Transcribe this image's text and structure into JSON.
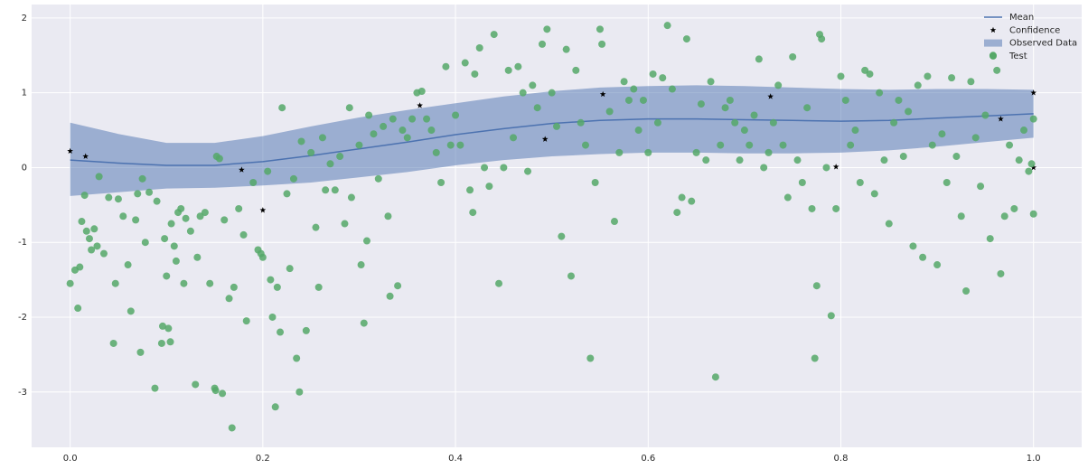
{
  "chart_data": {
    "type": "line",
    "xlim": [
      -0.04,
      1.05
    ],
    "ylim": [
      -3.74,
      2.18
    ],
    "xticks": [
      {
        "value": 0,
        "label": "0.0"
      },
      0.2,
      0.4,
      0.6,
      0.8,
      {
        "value": 1,
        "label": "1.0"
      }
    ],
    "yticks": [
      -3,
      -2,
      -1,
      0,
      1,
      2
    ],
    "grid": true,
    "legend": "upper right",
    "series": [
      {
        "name": "Mean",
        "type": "line",
        "color": "#4c72b0",
        "x": [
          0,
          0.05,
          0.1,
          0.15,
          0.2,
          0.25,
          0.3,
          0.35,
          0.4,
          0.45,
          0.5,
          0.55,
          0.6,
          0.65,
          0.7,
          0.75,
          0.8,
          0.85,
          0.9,
          0.95,
          1.0
        ],
        "values": [
          0.1,
          0.06,
          0.03,
          0.03,
          0.08,
          0.16,
          0.25,
          0.34,
          0.44,
          0.52,
          0.59,
          0.63,
          0.65,
          0.65,
          0.64,
          0.63,
          0.62,
          0.63,
          0.66,
          0.69,
          0.72
        ]
      },
      {
        "name": "Confidence",
        "type": "scatter",
        "marker": "star",
        "color": "#000000",
        "x": [
          0,
          0.016,
          0.178,
          0.2,
          0.363,
          0.493,
          0.553,
          0.727,
          0.795,
          0.966,
          1.0,
          1.0
        ],
        "values": [
          0.22,
          0.15,
          -0.03,
          -0.57,
          0.83,
          0.38,
          0.98,
          0.95,
          0.01,
          0.65,
          1.0,
          0.0
        ]
      },
      {
        "name": "Observed Data",
        "type": "area",
        "color": "#4c72b0",
        "x": [
          0,
          0.05,
          0.1,
          0.15,
          0.2,
          0.25,
          0.3,
          0.35,
          0.4,
          0.45,
          0.5,
          0.55,
          0.6,
          0.65,
          0.7,
          0.75,
          0.8,
          0.85,
          0.9,
          0.95,
          1.0
        ],
        "upper": [
          0.6,
          0.45,
          0.33,
          0.33,
          0.42,
          0.55,
          0.67,
          0.77,
          0.86,
          0.95,
          1.02,
          1.07,
          1.09,
          1.1,
          1.09,
          1.07,
          1.05,
          1.04,
          1.05,
          1.05,
          1.04
        ],
        "lower": [
          -0.38,
          -0.33,
          -0.28,
          -0.27,
          -0.24,
          -0.2,
          -0.13,
          -0.06,
          0.03,
          0.1,
          0.15,
          0.18,
          0.2,
          0.2,
          0.19,
          0.19,
          0.2,
          0.23,
          0.28,
          0.34,
          0.4
        ]
      },
      {
        "name": "Test",
        "type": "scatter",
        "marker": "circle",
        "color": "#55a868",
        "x": [
          0.0,
          0.005,
          0.008,
          0.01,
          0.012,
          0.015,
          0.017,
          0.02,
          0.022,
          0.025,
          0.028,
          0.03,
          0.035,
          0.04,
          0.045,
          0.047,
          0.05,
          0.055,
          0.06,
          0.063,
          0.068,
          0.07,
          0.073,
          0.075,
          0.078,
          0.082,
          0.088,
          0.09,
          0.095,
          0.096,
          0.098,
          0.1,
          0.102,
          0.104,
          0.105,
          0.108,
          0.11,
          0.112,
          0.115,
          0.118,
          0.12,
          0.125,
          0.13,
          0.132,
          0.135,
          0.14,
          0.145,
          0.15,
          0.151,
          0.152,
          0.155,
          0.158,
          0.16,
          0.165,
          0.168,
          0.17,
          0.175,
          0.18,
          0.183,
          0.19,
          0.195,
          0.198,
          0.2,
          0.205,
          0.208,
          0.21,
          0.213,
          0.215,
          0.218,
          0.22,
          0.225,
          0.228,
          0.232,
          0.235,
          0.238,
          0.24,
          0.245,
          0.25,
          0.255,
          0.258,
          0.262,
          0.265,
          0.27,
          0.275,
          0.28,
          0.285,
          0.29,
          0.292,
          0.3,
          0.302,
          0.305,
          0.308,
          0.31,
          0.315,
          0.32,
          0.325,
          0.33,
          0.332,
          0.335,
          0.34,
          0.345,
          0.35,
          0.355,
          0.36,
          0.365,
          0.37,
          0.375,
          0.38,
          0.385,
          0.39,
          0.395,
          0.4,
          0.405,
          0.41,
          0.415,
          0.418,
          0.42,
          0.425,
          0.43,
          0.435,
          0.44,
          0.445,
          0.45,
          0.455,
          0.46,
          0.465,
          0.47,
          0.475,
          0.48,
          0.485,
          0.49,
          0.495,
          0.5,
          0.505,
          0.51,
          0.515,
          0.52,
          0.525,
          0.53,
          0.535,
          0.54,
          0.545,
          0.55,
          0.552,
          0.56,
          0.565,
          0.57,
          0.575,
          0.58,
          0.585,
          0.59,
          0.595,
          0.6,
          0.605,
          0.61,
          0.615,
          0.62,
          0.625,
          0.63,
          0.635,
          0.64,
          0.645,
          0.65,
          0.655,
          0.66,
          0.665,
          0.67,
          0.675,
          0.68,
          0.685,
          0.69,
          0.695,
          0.7,
          0.705,
          0.71,
          0.715,
          0.72,
          0.725,
          0.73,
          0.735,
          0.74,
          0.745,
          0.75,
          0.755,
          0.76,
          0.765,
          0.77,
          0.773,
          0.775,
          0.778,
          0.78,
          0.785,
          0.79,
          0.795,
          0.8,
          0.805,
          0.81,
          0.815,
          0.82,
          0.825,
          0.83,
          0.835,
          0.84,
          0.845,
          0.85,
          0.855,
          0.86,
          0.865,
          0.87,
          0.875,
          0.88,
          0.885,
          0.89,
          0.895,
          0.9,
          0.905,
          0.91,
          0.915,
          0.92,
          0.925,
          0.93,
          0.935,
          0.94,
          0.945,
          0.95,
          0.955,
          0.958,
          0.962,
          0.966,
          0.97,
          0.975,
          0.98,
          0.985,
          0.99,
          0.995,
          1.0,
          1.0,
          0.998
        ],
        "values": [
          -1.55,
          -1.37,
          -1.88,
          -1.33,
          -0.72,
          -0.37,
          -0.85,
          -0.95,
          -1.1,
          -0.82,
          -1.05,
          -0.12,
          -1.15,
          -0.4,
          -2.35,
          -1.55,
          -0.42,
          -0.65,
          -1.3,
          -1.92,
          -0.7,
          -0.35,
          -2.47,
          -0.15,
          -1.0,
          -0.33,
          -2.95,
          -0.45,
          -2.35,
          -2.12,
          -0.95,
          -1.45,
          -2.15,
          -2.33,
          -0.75,
          -1.05,
          -1.25,
          -0.6,
          -0.55,
          -1.55,
          -0.68,
          -0.85,
          -2.9,
          -1.2,
          -0.65,
          -0.6,
          -1.55,
          -2.95,
          -2.98,
          0.15,
          0.12,
          -3.02,
          -0.7,
          -1.75,
          -3.48,
          -1.6,
          -0.55,
          -0.9,
          -2.05,
          -0.2,
          -1.1,
          -1.15,
          -1.2,
          -0.05,
          -1.5,
          -2.0,
          -3.2,
          -1.6,
          -2.2,
          0.8,
          -0.35,
          -1.35,
          -0.15,
          -2.55,
          -3.0,
          0.35,
          -2.18,
          0.2,
          -0.8,
          -1.6,
          0.4,
          -0.3,
          0.05,
          -0.3,
          0.15,
          -0.75,
          0.8,
          -0.4,
          0.3,
          -1.3,
          -2.08,
          -0.98,
          0.7,
          0.45,
          -0.15,
          0.55,
          -0.65,
          -1.72,
          0.65,
          -1.58,
          0.5,
          0.4,
          0.65,
          1.0,
          1.02,
          0.65,
          0.5,
          0.2,
          -0.2,
          1.35,
          0.3,
          0.7,
          0.3,
          1.4,
          -0.3,
          -0.6,
          1.25,
          1.6,
          0.0,
          -0.25,
          1.78,
          -1.55,
          0.0,
          1.3,
          0.4,
          1.35,
          1.0,
          -0.05,
          1.1,
          0.8,
          1.65,
          1.85,
          1.0,
          0.55,
          -0.92,
          1.58,
          -1.45,
          1.3,
          0.6,
          0.3,
          -2.55,
          -0.2,
          1.85,
          1.65,
          0.75,
          -0.72,
          0.2,
          1.15,
          0.9,
          1.05,
          0.5,
          0.9,
          0.2,
          1.25,
          0.6,
          1.2,
          1.9,
          1.05,
          -0.6,
          -0.4,
          1.72,
          -0.45,
          0.2,
          0.85,
          0.1,
          1.15,
          -2.8,
          0.3,
          0.8,
          0.9,
          0.6,
          0.1,
          0.5,
          0.3,
          0.7,
          1.45,
          0.0,
          0.2,
          0.6,
          1.1,
          0.3,
          -0.4,
          1.48,
          0.1,
          -0.2,
          0.8,
          -0.55,
          -2.55,
          -1.58,
          1.78,
          1.72,
          0.0,
          -1.98,
          -0.55,
          1.22,
          0.9,
          0.3,
          0.5,
          -0.2,
          1.3,
          1.25,
          -0.35,
          1.0,
          0.1,
          -0.75,
          0.6,
          0.9,
          0.15,
          0.75,
          -1.05,
          1.1,
          -1.2,
          1.22,
          0.3,
          -1.3,
          0.45,
          -0.2,
          1.2,
          0.15,
          -0.65,
          -1.65,
          1.15,
          0.4,
          -0.25,
          0.7,
          -0.95,
          1.5,
          1.3,
          -1.42,
          -0.65,
          0.3,
          -0.55,
          0.1,
          0.5,
          -0.05,
          0.65,
          -0.62,
          0.05
        ]
      }
    ]
  }
}
